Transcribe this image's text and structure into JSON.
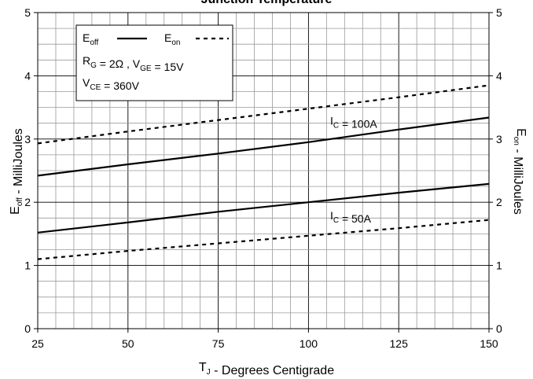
{
  "chart_data": {
    "type": "line",
    "title": "Junction Temperature",
    "xlabel": {
      "main": "T",
      "sub": "J",
      "rest": " - Degrees Centigrade"
    },
    "ylabel_left": {
      "main": "E",
      "sub": "off",
      "rest": " - MilliJoules"
    },
    "ylabel_right": {
      "main": "E",
      "sub": "on",
      "rest": " - MilliJoules"
    },
    "xlim": [
      25,
      150
    ],
    "ylim": [
      0,
      5
    ],
    "xticks": [
      25,
      50,
      75,
      100,
      125,
      150
    ],
    "yticks": [
      0,
      1,
      2,
      3,
      4,
      5
    ],
    "grid": true,
    "legend": {
      "position": "top-left",
      "entries": [
        {
          "main": "E",
          "sub": "off",
          "style": "solid"
        },
        {
          "main": "E",
          "sub": "on",
          "style": "dashed"
        }
      ],
      "conditions": [
        [
          {
            "t": "R",
            "s": "G"
          },
          {
            "t": " = 2Ω ,  V",
            "s": "GE"
          },
          {
            "t": " = 15V",
            "s": ""
          }
        ],
        [
          {
            "t": "V",
            "s": "CE"
          },
          {
            "t": " = 360V",
            "s": ""
          }
        ]
      ]
    },
    "annotations": [
      {
        "main": "I",
        "sub": "C",
        "rest": " = 100A",
        "x": 106,
        "y": 3.23
      },
      {
        "main": "I",
        "sub": "C",
        "rest": " = 50A",
        "x": 106,
        "y": 1.73
      }
    ],
    "series": [
      {
        "name": "Eoff",
        "ic": "100A",
        "style": "solid",
        "x": [
          25,
          50,
          75,
          100,
          125,
          150
        ],
        "y": [
          2.42,
          2.6,
          2.77,
          2.95,
          3.15,
          3.34
        ]
      },
      {
        "name": "Eon",
        "ic": "100A",
        "style": "dashed",
        "x": [
          25,
          50,
          75,
          100,
          125,
          150
        ],
        "y": [
          2.93,
          3.12,
          3.3,
          3.48,
          3.66,
          3.85
        ]
      },
      {
        "name": "Eoff",
        "ic": "50A",
        "style": "solid",
        "x": [
          25,
          50,
          75,
          100,
          125,
          150
        ],
        "y": [
          1.52,
          1.68,
          1.85,
          2.0,
          2.15,
          2.29
        ]
      },
      {
        "name": "Eon",
        "ic": "50A",
        "style": "dashed",
        "x": [
          25,
          50,
          75,
          100,
          125,
          150
        ],
        "y": [
          1.1,
          1.23,
          1.35,
          1.47,
          1.59,
          1.72
        ]
      }
    ]
  }
}
